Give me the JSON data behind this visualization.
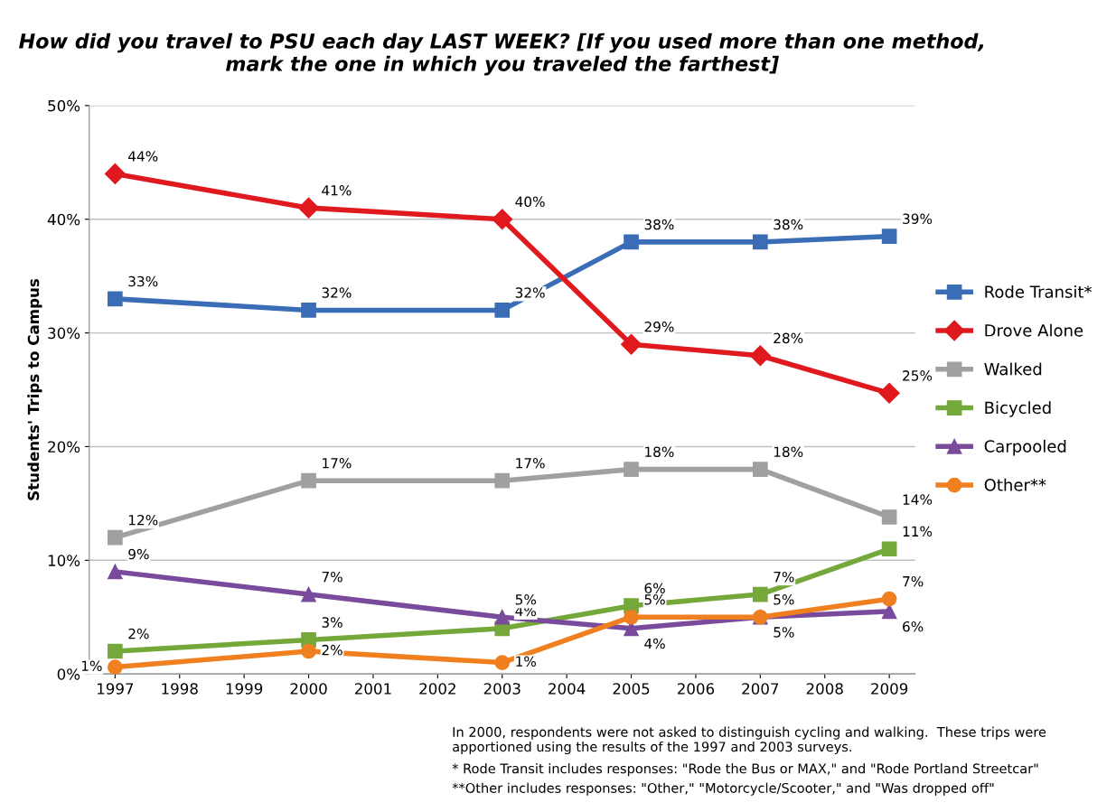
{
  "chart_data": {
    "type": "line",
    "title": "How did you travel to PSU each day LAST WEEK? [If you used more than one method, mark the one in which you traveled the farthest]",
    "ylabel": "Students' Trips to Campus",
    "x": [
      1997,
      2000,
      2003,
      2005,
      2007,
      2009
    ],
    "xlim": [
      1996.6,
      2009.4
    ],
    "xticks": [
      1997,
      1998,
      1999,
      2000,
      2001,
      2002,
      2003,
      2004,
      2005,
      2006,
      2007,
      2008,
      2009
    ],
    "ylim": [
      0,
      50
    ],
    "yticks": [
      {
        "value": 0,
        "label": "0%"
      },
      {
        "value": 10,
        "label": "10%"
      },
      {
        "value": 20,
        "label": "20%"
      },
      {
        "value": 30,
        "label": "30%"
      },
      {
        "value": 40,
        "label": "40%"
      },
      {
        "value": 50,
        "label": "50%"
      }
    ],
    "grid": "y",
    "legend": "right",
    "series": [
      {
        "name": "Rode Transit*",
        "color": "#3a6db5",
        "marker": "square",
        "values": [
          33,
          32,
          32,
          38,
          38,
          38.5
        ],
        "value_labels": [
          "33%",
          "32%",
          "32%",
          "38%",
          "38%",
          "39%"
        ]
      },
      {
        "name": "Drove Alone",
        "color": "#e0191f",
        "marker": "diamond",
        "values": [
          44,
          41,
          40,
          29,
          28,
          24.7
        ],
        "value_labels": [
          "44%",
          "41%",
          "40%",
          "29%",
          "28%",
          "25%"
        ]
      },
      {
        "name": "Walked",
        "color": "#a0a0a0",
        "marker": "square",
        "values": [
          12,
          17,
          17,
          18,
          18,
          13.8
        ],
        "value_labels": [
          "12%",
          "17%",
          "17%",
          "18%",
          "18%",
          "14%"
        ]
      },
      {
        "name": "Bicycled",
        "color": "#74a83a",
        "marker": "square",
        "values": [
          2,
          3,
          4,
          6,
          7,
          11
        ],
        "value_labels": [
          "2%",
          "3%",
          "4%",
          "6%",
          "7%",
          "11%"
        ]
      },
      {
        "name": "Carpooled",
        "color": "#7a4a9c",
        "marker": "triangle",
        "values": [
          9,
          7,
          5,
          4,
          5,
          5.5
        ],
        "value_labels": [
          "9%",
          "7%",
          "5%",
          "4%",
          "5%",
          "6%"
        ]
      },
      {
        "name": "Other**",
        "color": "#f07f20",
        "marker": "circle",
        "values": [
          0.6,
          2,
          1,
          5,
          5,
          6.6
        ],
        "value_labels": [
          "1%",
          "2%",
          "1%",
          "5%",
          "5%",
          "7%"
        ]
      }
    ],
    "annotations": [
      "In 2000, respondents were not asked to distinguish cycling and walking.  These trips were\napportioned using the results of the 1997 and 2003 surveys.",
      "* Rode Transit includes responses: \"Rode the Bus or MAX,\" and \"Rode Portland Streetcar\"",
      "**Other includes responses: \"Other,\" \"Motorcycle/Scooter,\" and \"Was dropped off\""
    ]
  }
}
